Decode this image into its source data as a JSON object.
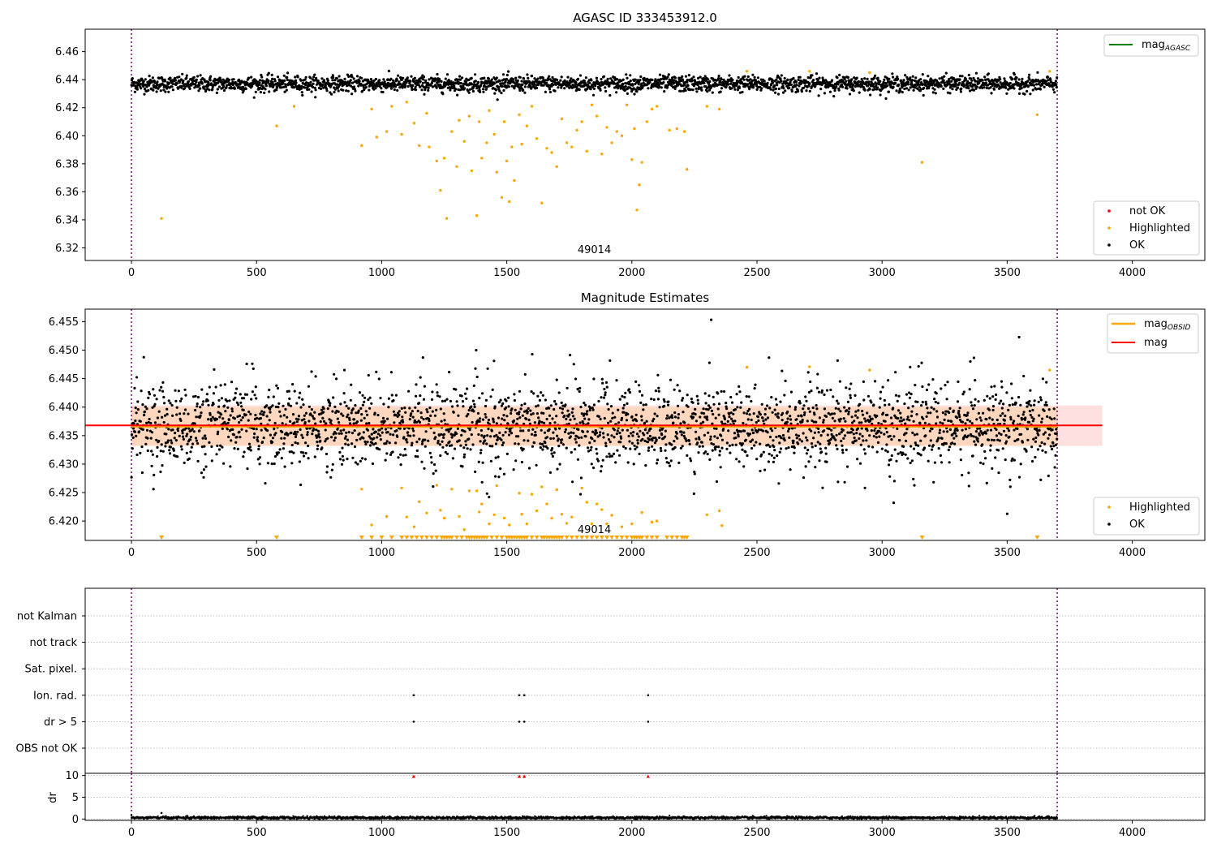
{
  "chart_data": [
    {
      "type": "scatter",
      "title": "AGASC ID 333453912.0",
      "xlim": [
        -185,
        4290
      ],
      "ylim": [
        6.311,
        6.476
      ],
      "x_ticks": [
        0,
        500,
        1000,
        1500,
        2000,
        2500,
        3000,
        3500,
        4000
      ],
      "x_tick_labels": [
        "0",
        "500",
        "1000",
        "1500",
        "2000",
        "2500",
        "3000",
        "3500",
        "4000"
      ],
      "y_ticks": [
        6.32,
        6.34,
        6.36,
        6.38,
        6.4,
        6.42,
        6.44,
        6.46
      ],
      "y_tick_labels": [
        "6.32",
        "6.34",
        "6.36",
        "6.38",
        "6.40",
        "6.42",
        "6.44",
        "6.46"
      ],
      "obsid_boundaries": [
        0,
        3700
      ],
      "obsid_label": "49014",
      "obsid_label_x": 1850,
      "ok_band": {
        "x_range": [
          0,
          3700
        ],
        "center": 6.437,
        "spread": 0.004
      },
      "highlighted_points": [
        [
          120,
          6.341
        ],
        [
          580,
          6.407
        ],
        [
          650,
          6.421
        ],
        [
          920,
          6.393
        ],
        [
          960,
          6.419
        ],
        [
          980,
          6.399
        ],
        [
          1020,
          6.403
        ],
        [
          1040,
          6.421
        ],
        [
          1080,
          6.401
        ],
        [
          1100,
          6.424
        ],
        [
          1130,
          6.409
        ],
        [
          1150,
          6.393
        ],
        [
          1180,
          6.416
        ],
        [
          1190,
          6.392
        ],
        [
          1220,
          6.382
        ],
        [
          1235,
          6.361
        ],
        [
          1250,
          6.384
        ],
        [
          1260,
          6.341
        ],
        [
          1280,
          6.403
        ],
        [
          1300,
          6.378
        ],
        [
          1310,
          6.411
        ],
        [
          1330,
          6.396
        ],
        [
          1350,
          6.414
        ],
        [
          1360,
          6.375
        ],
        [
          1380,
          6.343
        ],
        [
          1390,
          6.41
        ],
        [
          1400,
          6.384
        ],
        [
          1420,
          6.395
        ],
        [
          1430,
          6.418
        ],
        [
          1450,
          6.401
        ],
        [
          1460,
          6.374
        ],
        [
          1480,
          6.356
        ],
        [
          1490,
          6.41
        ],
        [
          1500,
          6.382
        ],
        [
          1510,
          6.353
        ],
        [
          1520,
          6.392
        ],
        [
          1530,
          6.368
        ],
        [
          1550,
          6.415
        ],
        [
          1560,
          6.394
        ],
        [
          1580,
          6.407
        ],
        [
          1600,
          6.421
        ],
        [
          1620,
          6.398
        ],
        [
          1640,
          6.352
        ],
        [
          1660,
          6.391
        ],
        [
          1680,
          6.388
        ],
        [
          1700,
          6.378
        ],
        [
          1720,
          6.412
        ],
        [
          1740,
          6.395
        ],
        [
          1760,
          6.392
        ],
        [
          1780,
          6.404
        ],
        [
          1800,
          6.41
        ],
        [
          1820,
          6.389
        ],
        [
          1840,
          6.422
        ],
        [
          1860,
          6.414
        ],
        [
          1880,
          6.387
        ],
        [
          1900,
          6.406
        ],
        [
          1920,
          6.395
        ],
        [
          1940,
          6.403
        ],
        [
          1960,
          6.4
        ],
        [
          1980,
          6.422
        ],
        [
          2000,
          6.383
        ],
        [
          2010,
          6.405
        ],
        [
          2020,
          6.347
        ],
        [
          2030,
          6.365
        ],
        [
          2040,
          6.381
        ],
        [
          2060,
          6.41
        ],
        [
          2080,
          6.419
        ],
        [
          2100,
          6.421
        ],
        [
          2150,
          6.404
        ],
        [
          2180,
          6.405
        ],
        [
          2210,
          6.403
        ],
        [
          2220,
          6.376
        ],
        [
          2300,
          6.421
        ],
        [
          2350,
          6.419
        ],
        [
          2460,
          6.446
        ],
        [
          2710,
          6.446
        ],
        [
          2950,
          6.445
        ],
        [
          3160,
          6.381
        ],
        [
          3620,
          6.415
        ],
        [
          3670,
          6.446
        ]
      ],
      "legends": [
        {
          "location": "upper right",
          "entries": [
            {
              "label_main": "mag",
              "label_sub": "AGASC",
              "color": "#008000",
              "marker": "line"
            }
          ]
        },
        {
          "location": "lower right",
          "entries": [
            {
              "label_main": "not OK",
              "color": "#ff0000",
              "marker": "dot"
            },
            {
              "label_main": "Highlighted",
              "color": "#ffa500",
              "marker": "dot"
            },
            {
              "label_main": "OK",
              "color": "#000000",
              "marker": "dot"
            }
          ]
        }
      ]
    },
    {
      "type": "scatter",
      "title": "Magnitude Estimates",
      "xlim": [
        -185,
        4290
      ],
      "ylim": [
        6.4166,
        6.4572
      ],
      "x_ticks": [
        0,
        500,
        1000,
        1500,
        2000,
        2500,
        3000,
        3500,
        4000
      ],
      "x_tick_labels": [
        "0",
        "500",
        "1000",
        "1500",
        "2000",
        "2500",
        "3000",
        "3500",
        "4000"
      ],
      "y_ticks": [
        6.42,
        6.425,
        6.43,
        6.435,
        6.44,
        6.445,
        6.45,
        6.455
      ],
      "y_tick_labels": [
        "6.420",
        "6.425",
        "6.430",
        "6.435",
        "6.440",
        "6.445",
        "6.450",
        "6.455"
      ],
      "obsid_boundaries": [
        0,
        3700
      ],
      "obsid_label": "49014",
      "obsid_label_x": 1850,
      "mag_line": {
        "value": 6.4368,
        "x_range": [
          0,
          3700
        ],
        "band": [
          6.4332,
          6.4403
        ],
        "band_x_range": [
          0,
          3880
        ],
        "color": "#ff0000"
      },
      "mag_obsid_line": {
        "value": 6.4366,
        "x_range": [
          0,
          3700
        ],
        "band": [
          6.4332,
          6.44
        ],
        "color": "#ffa500"
      },
      "ok_band": {
        "x_range": [
          0,
          3700
        ],
        "center": 6.4366,
        "spread": 0.0035
      },
      "highlighted_points": [
        [
          920,
          6.4256
        ],
        [
          960,
          6.4193
        ],
        [
          1020,
          6.4208
        ],
        [
          1080,
          6.4258
        ],
        [
          1100,
          6.4207
        ],
        [
          1130,
          6.419
        ],
        [
          1150,
          6.4234
        ],
        [
          1180,
          6.4214
        ],
        [
          1220,
          6.4263
        ],
        [
          1235,
          6.4219
        ],
        [
          1250,
          6.4205
        ],
        [
          1280,
          6.4256
        ],
        [
          1310,
          6.4208
        ],
        [
          1330,
          6.4185
        ],
        [
          1350,
          6.4253
        ],
        [
          1380,
          6.4253
        ],
        [
          1390,
          6.4216
        ],
        [
          1400,
          6.423
        ],
        [
          1430,
          6.4195
        ],
        [
          1450,
          6.4211
        ],
        [
          1460,
          6.4262
        ],
        [
          1490,
          6.4205
        ],
        [
          1510,
          6.4193
        ],
        [
          1550,
          6.4249
        ],
        [
          1560,
          6.4212
        ],
        [
          1580,
          6.4195
        ],
        [
          1600,
          6.4247
        ],
        [
          1620,
          6.4218
        ],
        [
          1640,
          6.426
        ],
        [
          1660,
          6.423
        ],
        [
          1680,
          6.4205
        ],
        [
          1700,
          6.4255
        ],
        [
          1720,
          6.4212
        ],
        [
          1740,
          6.4196
        ],
        [
          1760,
          6.4207
        ],
        [
          1800,
          6.4258
        ],
        [
          1820,
          6.4233
        ],
        [
          1840,
          6.4195
        ],
        [
          1860,
          6.423
        ],
        [
          1880,
          6.422
        ],
        [
          1900,
          6.4195
        ],
        [
          1920,
          6.421
        ],
        [
          1960,
          6.419
        ],
        [
          2000,
          6.4195
        ],
        [
          2040,
          6.4215
        ],
        [
          2080,
          6.4198
        ],
        [
          2100,
          6.42
        ],
        [
          2300,
          6.4211
        ],
        [
          2350,
          6.4218
        ],
        [
          2360,
          6.4192
        ],
        [
          2460,
          6.447
        ],
        [
          2710,
          6.4471
        ],
        [
          2950,
          6.4465
        ],
        [
          3670,
          6.4465
        ]
      ],
      "lower_bound_markers_x": [
        120,
        580,
        920,
        960,
        1000,
        1040,
        1080,
        1100,
        1120,
        1140,
        1160,
        1180,
        1200,
        1220,
        1240,
        1250,
        1260,
        1270,
        1280,
        1300,
        1320,
        1340,
        1350,
        1360,
        1370,
        1380,
        1390,
        1400,
        1410,
        1420,
        1440,
        1460,
        1480,
        1500,
        1510,
        1520,
        1530,
        1540,
        1550,
        1560,
        1570,
        1580,
        1600,
        1620,
        1640,
        1650,
        1660,
        1670,
        1680,
        1690,
        1700,
        1710,
        1720,
        1740,
        1760,
        1780,
        1800,
        1820,
        1840,
        1860,
        1880,
        1900,
        1920,
        1940,
        1960,
        1980,
        2000,
        2010,
        2020,
        2030,
        2040,
        2060,
        2080,
        2100,
        2140,
        2160,
        2180,
        2200,
        2210,
        2220,
        3160,
        3620
      ],
      "legends": [
        {
          "location": "upper right",
          "entries": [
            {
              "label_main": "mag",
              "label_sub": "OBSID",
              "color": "#ffa500",
              "marker": "line"
            },
            {
              "label_main": "mag",
              "label_sub": "",
              "color": "#ff0000",
              "marker": "line"
            }
          ]
        },
        {
          "location": "lower right",
          "entries": [
            {
              "label_main": "Highlighted",
              "color": "#ffa500",
              "marker": "dot"
            },
            {
              "label_main": "OK",
              "color": "#000000",
              "marker": "dot"
            }
          ]
        }
      ]
    },
    {
      "type": "scatter",
      "title": "",
      "xlim": [
        -185,
        4290
      ],
      "categories": [
        "not Kalman",
        "not track",
        "Sat. pixel.",
        "Ion. rad.",
        "dr > 5",
        "OBS not OK"
      ],
      "flag_points": {
        "Ion. rad.": [
          1128,
          1550,
          1570,
          2065
        ],
        "dr > 5": [
          1128,
          1550,
          1570,
          2065
        ]
      },
      "obsid_boundaries": [
        0,
        3700
      ]
    },
    {
      "type": "scatter",
      "title": "",
      "ylabel": "dr",
      "xlim": [
        -185,
        4290
      ],
      "ylim": [
        -0.3,
        10.5
      ],
      "x_ticks": [
        0,
        500,
        1000,
        1500,
        2000,
        2500,
        3000,
        3500,
        4000
      ],
      "x_tick_labels": [
        "0",
        "500",
        "1000",
        "1500",
        "2000",
        "2500",
        "3000",
        "3500",
        "4000"
      ],
      "y_ticks": [
        0,
        5,
        10
      ],
      "y_tick_labels": [
        "0",
        "5",
        "10"
      ],
      "obsid_boundaries": [
        0,
        3700
      ],
      "ok_band": {
        "x_range": [
          0,
          3700
        ],
        "center": 0.3,
        "spread": 0.25
      },
      "extra_points": [
        [
          0,
          0.9
        ],
        [
          120,
          1.4
        ]
      ],
      "clipped_markers_x": [
        1128,
        1550,
        1570,
        2065
      ]
    }
  ]
}
